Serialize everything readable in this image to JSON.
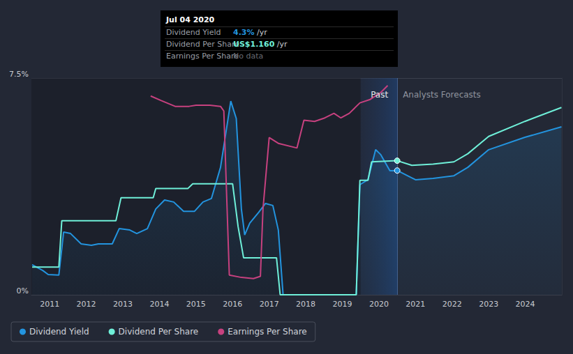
{
  "chart_data": {
    "type": "line",
    "xlim": [
      2010.5,
      2025
    ],
    "xticks": [
      2011,
      2012,
      2013,
      2014,
      2015,
      2016,
      2017,
      2018,
      2019,
      2020,
      2021,
      2022,
      2023,
      2024
    ],
    "ylim": [
      0,
      7.5
    ],
    "yticks": [
      {
        "value": 0,
        "label": "0%"
      },
      {
        "value": 7.5,
        "label": "7.5%"
      }
    ],
    "y2lim": [
      0,
      1.875
    ],
    "grid": true,
    "legend": "bottom-left",
    "series": [
      {
        "name": "Dividend Yield",
        "color": "#2394df",
        "x": [
          2010.52,
          2010.81,
          2010.96,
          2011.25,
          2011.38,
          2011.57,
          2011.86,
          2012.14,
          2012.33,
          2012.71,
          2012.9,
          2013.19,
          2013.38,
          2013.67,
          2013.9,
          2014.14,
          2014.39,
          2014.66,
          2014.96,
          2015.19,
          2015.42,
          2015.67,
          2015.95,
          2016.1,
          2016.24,
          2016.33,
          2016.47,
          2016.71,
          2016.9,
          2017.1,
          2017.25,
          2017.38,
          2019.38,
          2019.48,
          2019.7,
          2019.91,
          2020.05,
          2020.3,
          2020.5,
          2021.0,
          2021.48,
          2022.05,
          2022.43,
          2023.0,
          2023.99,
          2024.99
        ],
        "values": [
          1.04,
          0.84,
          0.7,
          0.68,
          2.17,
          2.12,
          1.76,
          1.71,
          1.76,
          1.76,
          2.29,
          2.24,
          2.12,
          2.29,
          2.97,
          3.28,
          3.21,
          2.89,
          2.89,
          3.21,
          3.33,
          4.41,
          6.7,
          6.1,
          2.97,
          2.07,
          2.48,
          2.85,
          3.16,
          3.09,
          2.24,
          0,
          0,
          3.81,
          3.98,
          5.02,
          4.85,
          4.29,
          4.3,
          3.98,
          4.03,
          4.12,
          4.41,
          5.02,
          5.45,
          5.81
        ]
      },
      {
        "name": "Dividend Per Share",
        "color": "#6ff0d9",
        "axis": "y2",
        "x": [
          2010.52,
          2011.25,
          2011.33,
          2012.81,
          2012.95,
          2013.83,
          2013.9,
          2014.78,
          2014.91,
          2016.0,
          2016.15,
          2016.3,
          2017.2,
          2017.3,
          2019.38,
          2019.48,
          2019.7,
          2019.8,
          2020.5,
          2020.9,
          2021.48,
          2022.05,
          2022.43,
          2023.0,
          2023.99,
          2024.99
        ],
        "values": [
          0.24,
          0.24,
          0.64,
          0.64,
          0.84,
          0.84,
          0.92,
          0.92,
          0.96,
          0.96,
          0.59,
          0.32,
          0.32,
          0,
          0,
          0.99,
          0.99,
          1.15,
          1.16,
          1.12,
          1.13,
          1.15,
          1.22,
          1.37,
          1.5,
          1.62
        ]
      },
      {
        "name": "Earnings Per Share",
        "color": "#c7417f",
        "axis": "y2",
        "x": [
          2013.76,
          2014.05,
          2014.43,
          2014.81,
          2015.0,
          2015.38,
          2015.67,
          2015.76,
          2015.91,
          2016.24,
          2016.57,
          2016.76,
          2016.83,
          2017.0,
          2017.25,
          2017.76,
          2017.95,
          2018.24,
          2018.52,
          2018.77,
          2018.96,
          2019.19,
          2019.48,
          2019.76,
          2020.05,
          2020.24
        ],
        "values": [
          1.72,
          1.68,
          1.63,
          1.63,
          1.64,
          1.64,
          1.63,
          1.59,
          0.17,
          0.15,
          0.14,
          0.16,
          0.74,
          1.36,
          1.31,
          1.27,
          1.51,
          1.5,
          1.53,
          1.57,
          1.53,
          1.57,
          1.66,
          1.69,
          1.75,
          1.81
        ]
      }
    ],
    "annotations": {
      "past": "Past",
      "forecast": "Analysts Forecasts",
      "forecast_start": 2020.5,
      "highlight_start": 2019.5
    },
    "tooltip": {
      "title": "Jul 04 2020",
      "x": 2020.5,
      "rows": [
        {
          "label": "Dividend Yield",
          "value": "4.3%",
          "unit": "/yr"
        },
        {
          "label": "Dividend Per Share",
          "value": "US$1.160",
          "unit": "/yr"
        },
        {
          "label": "Earnings Per Share",
          "value": "No data"
        }
      ]
    }
  }
}
